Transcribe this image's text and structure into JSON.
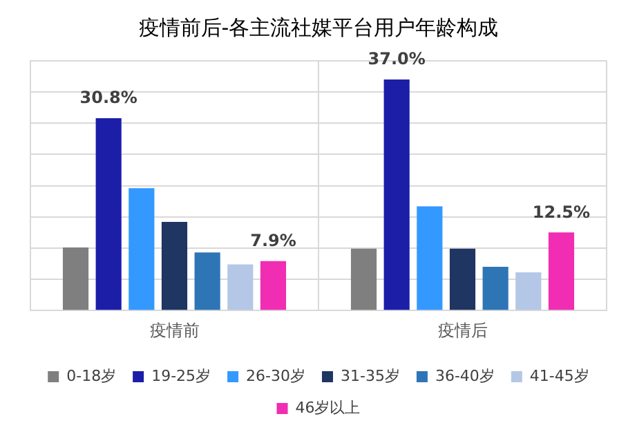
{
  "chart_data": {
    "type": "bar",
    "title": "疫情前后-各主流社媒平台用户年龄构成",
    "categories": [
      "疫情前",
      "疫情后"
    ],
    "series": [
      {
        "name": "0-18岁",
        "color": "#7f7f7f",
        "values": [
          10.1,
          9.9
        ],
        "value_labels": [
          null,
          null
        ]
      },
      {
        "name": "19-25岁",
        "color": "#1c1ea8",
        "values": [
          30.8,
          37.0
        ],
        "value_labels": [
          "30.8%",
          "37.0%"
        ]
      },
      {
        "name": "26-30岁",
        "color": "#3399ff",
        "values": [
          19.6,
          16.7
        ],
        "value_labels": [
          null,
          null
        ]
      },
      {
        "name": "31-35岁",
        "color": "#1f3562",
        "values": [
          14.2,
          9.9
        ],
        "value_labels": [
          null,
          null
        ]
      },
      {
        "name": "36-40岁",
        "color": "#2e75b6",
        "values": [
          9.3,
          7.0
        ],
        "value_labels": [
          null,
          null
        ]
      },
      {
        "name": "41-45岁",
        "color": "#b4c7e7",
        "values": [
          7.4,
          6.1
        ],
        "value_labels": [
          null,
          null
        ]
      },
      {
        "name": "46岁以上",
        "color": "#f02db3",
        "values": [
          7.9,
          12.5
        ],
        "value_labels": [
          "7.9%",
          "12.5%"
        ]
      }
    ],
    "ylim": [
      0,
      40
    ],
    "yticks": [
      {
        "value": 0,
        "label": null
      },
      {
        "value": 5,
        "label": null
      },
      {
        "value": 10,
        "label": null
      },
      {
        "value": 15,
        "label": null
      },
      {
        "value": 20,
        "label": null
      },
      {
        "value": 25,
        "label": null
      },
      {
        "value": 30,
        "label": null
      },
      {
        "value": 35,
        "label": null
      },
      {
        "value": 40,
        "label": null
      }
    ],
    "tick_labels": "x",
    "grid": true,
    "legend": "bottom"
  }
}
